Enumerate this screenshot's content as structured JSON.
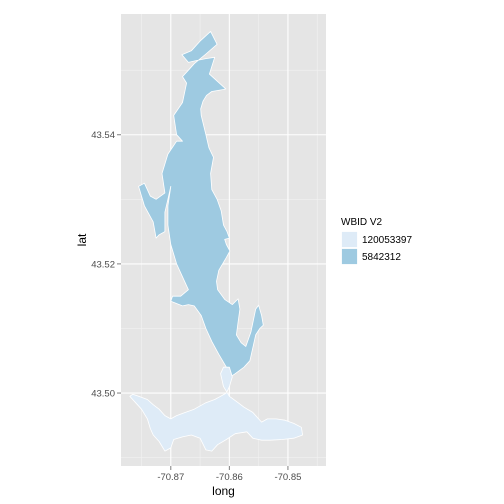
{
  "chart_data": {
    "type": "map",
    "xlabel": "long",
    "ylabel": "lat",
    "xlim": [
      -70.8785,
      -70.8435
    ],
    "ylim": [
      43.4887,
      43.5587
    ],
    "x_ticks": [
      {
        "value": -70.87,
        "label": "-70.87"
      },
      {
        "value": -70.86,
        "label": "-70.86"
      },
      {
        "value": -70.85,
        "label": "-70.85"
      }
    ],
    "y_ticks": [
      {
        "value": 43.5,
        "label": "43.50"
      },
      {
        "value": 43.52,
        "label": "43.52"
      },
      {
        "value": 43.54,
        "label": "43.54"
      }
    ],
    "grid": true,
    "background": "#e5e5e5",
    "gridline_color": "#ffffff",
    "legend": {
      "title": "WBID V2",
      "placement": "right",
      "entries": [
        {
          "label": "120053397",
          "color": "#deebf7"
        },
        {
          "label": "5842312",
          "color": "#9ecae1"
        }
      ]
    },
    "regions": [
      {
        "name": "5842312",
        "fill": "#9ecae1",
        "coords": [
          [
            -70.8621,
            43.554
          ],
          [
            -70.8632,
            43.556
          ],
          [
            -70.865,
            43.5545
          ],
          [
            -70.8665,
            43.553
          ],
          [
            -70.8681,
            43.5524
          ],
          [
            -70.867,
            43.5512
          ],
          [
            -70.8656,
            43.5515
          ],
          [
            -70.864,
            43.5518
          ],
          [
            -70.8625,
            43.552
          ],
          [
            -70.8634,
            43.5494
          ],
          [
            -70.8606,
            43.5471
          ],
          [
            -70.861,
            43.547
          ],
          [
            -70.863,
            43.5467
          ],
          [
            -70.8639,
            43.5461
          ],
          [
            -70.8645,
            43.5452
          ],
          [
            -70.8649,
            43.544
          ],
          [
            -70.8648,
            43.543
          ],
          [
            -70.864,
            43.54
          ],
          [
            -70.8635,
            43.538
          ],
          [
            -70.8627,
            43.5365
          ],
          [
            -70.8632,
            43.534
          ],
          [
            -70.863,
            43.5315
          ],
          [
            -70.8621,
            43.53
          ],
          [
            -70.8614,
            43.5282
          ],
          [
            -70.861,
            43.526
          ],
          [
            -70.8604,
            43.525
          ],
          [
            -70.86,
            43.524
          ],
          [
            -70.8608,
            43.5238
          ],
          [
            -70.8605,
            43.523
          ],
          [
            -70.8599,
            43.522
          ],
          [
            -70.8605,
            43.521
          ],
          [
            -70.8618,
            43.519
          ],
          [
            -70.8622,
            43.5173
          ],
          [
            -70.862,
            43.516
          ],
          [
            -70.8608,
            43.5145
          ],
          [
            -70.8595,
            43.5137
          ],
          [
            -70.8585,
            43.5146
          ],
          [
            -70.8582,
            43.513
          ],
          [
            -70.8585,
            43.511
          ],
          [
            -70.8588,
            43.509
          ],
          [
            -70.858,
            43.5078
          ],
          [
            -70.8572,
            43.5072
          ],
          [
            -70.8563,
            43.5095
          ],
          [
            -70.8555,
            43.513
          ],
          [
            -70.855,
            43.5136
          ],
          [
            -70.8545,
            43.512
          ],
          [
            -70.8542,
            43.5105
          ],
          [
            -70.8548,
            43.51
          ],
          [
            -70.8555,
            43.509
          ],
          [
            -70.856,
            43.507
          ],
          [
            -70.8565,
            43.505
          ],
          [
            -70.8575,
            43.504
          ],
          [
            -70.859,
            43.503
          ],
          [
            -70.86,
            43.5024
          ],
          [
            -70.8605,
            43.504
          ],
          [
            -70.8618,
            43.506
          ],
          [
            -70.863,
            43.508
          ],
          [
            -70.864,
            43.51
          ],
          [
            -70.8648,
            43.512
          ],
          [
            -70.866,
            43.5135
          ],
          [
            -70.867,
            43.5137
          ],
          [
            -70.868,
            43.5135
          ],
          [
            -70.87,
            43.5142
          ],
          [
            -70.8697,
            43.515
          ],
          [
            -70.8683,
            43.515
          ],
          [
            -70.867,
            43.516
          ],
          [
            -70.868,
            43.518
          ],
          [
            -70.869,
            43.52
          ],
          [
            -70.87,
            43.523
          ],
          [
            -70.8705,
            43.526
          ],
          [
            -70.8705,
            43.529
          ],
          [
            -70.87,
            43.532
          ],
          [
            -70.8705,
            43.53
          ],
          [
            -70.871,
            43.528
          ],
          [
            -70.871,
            43.525
          ],
          [
            -70.872,
            43.5245
          ],
          [
            -70.8725,
            43.524
          ],
          [
            -70.873,
            43.5265
          ],
          [
            -70.8745,
            43.529
          ],
          [
            -70.8755,
            43.532
          ],
          [
            -70.8745,
            43.5325
          ],
          [
            -70.8735,
            43.5305
          ],
          [
            -70.8725,
            43.53
          ],
          [
            -70.871,
            43.531
          ],
          [
            -70.8715,
            43.534
          ],
          [
            -70.8705,
            43.537
          ],
          [
            -70.869,
            43.539
          ],
          [
            -70.868,
            43.539
          ],
          [
            -70.869,
            43.54
          ],
          [
            -70.8695,
            43.543
          ],
          [
            -70.868,
            43.545
          ],
          [
            -70.8673,
            43.548
          ],
          [
            -70.868,
            43.549
          ],
          [
            -70.867,
            43.55
          ],
          [
            -70.866,
            43.551
          ],
          [
            -70.864,
            43.5525
          ],
          [
            -70.8621,
            43.554
          ]
        ]
      },
      {
        "name": "120053397",
        "fill": "#deebf7",
        "coords": [
          [
            -70.8595,
            43.5025
          ],
          [
            -70.86,
            43.504
          ],
          [
            -70.861,
            43.504
          ],
          [
            -70.8615,
            43.503
          ],
          [
            -70.861,
            43.501
          ],
          [
            -70.86,
            43.4995
          ],
          [
            -70.8585,
            43.4985
          ],
          [
            -70.8575,
            43.4978
          ],
          [
            -70.856,
            43.497
          ],
          [
            -70.855,
            43.496
          ],
          [
            -70.8545,
            43.4955
          ],
          [
            -70.8535,
            43.496
          ],
          [
            -70.852,
            43.496
          ],
          [
            -70.8505,
            43.4958
          ],
          [
            -70.849,
            43.4953
          ],
          [
            -70.8477,
            43.4947
          ],
          [
            -70.8475,
            43.4935
          ],
          [
            -70.849,
            43.493
          ],
          [
            -70.851,
            43.4928
          ],
          [
            -70.853,
            43.4927
          ],
          [
            -70.8545,
            43.4927
          ],
          [
            -70.856,
            43.493
          ],
          [
            -70.857,
            43.494
          ],
          [
            -70.859,
            43.4937
          ],
          [
            -70.8605,
            43.4928
          ],
          [
            -70.862,
            43.492
          ],
          [
            -70.863,
            43.491
          ],
          [
            -70.864,
            43.4912
          ],
          [
            -70.865,
            43.493
          ],
          [
            -70.8665,
            43.4935
          ],
          [
            -70.868,
            43.4932
          ],
          [
            -70.8695,
            43.4928
          ],
          [
            -70.87,
            43.4915
          ],
          [
            -70.871,
            43.491
          ],
          [
            -70.872,
            43.4925
          ],
          [
            -70.873,
            43.4935
          ],
          [
            -70.8735,
            43.4945
          ],
          [
            -70.874,
            43.496
          ],
          [
            -70.875,
            43.4975
          ],
          [
            -70.876,
            43.4985
          ],
          [
            -70.8765,
            43.499
          ],
          [
            -70.877,
            43.4995
          ],
          [
            -70.8765,
            43.4998
          ],
          [
            -70.8755,
            43.4995
          ],
          [
            -70.874,
            43.499
          ],
          [
            -70.873,
            43.4982
          ],
          [
            -70.872,
            43.4975
          ],
          [
            -70.871,
            43.4965
          ],
          [
            -70.87,
            43.496
          ],
          [
            -70.869,
            43.4965
          ],
          [
            -70.8675,
            43.497
          ],
          [
            -70.866,
            43.4975
          ],
          [
            -70.864,
            43.4985
          ],
          [
            -70.8625,
            43.499
          ],
          [
            -70.8615,
            43.4995
          ],
          [
            -70.8605,
            43.5
          ],
          [
            -70.86,
            43.501
          ],
          [
            -70.8595,
            43.5025
          ]
        ]
      }
    ]
  }
}
